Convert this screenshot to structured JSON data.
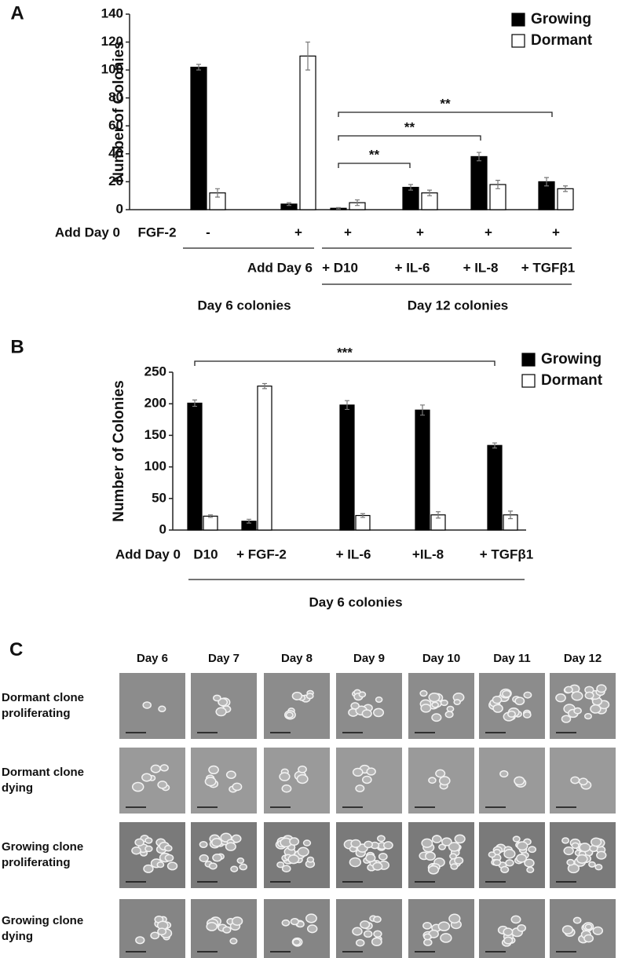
{
  "chart_data": [
    {
      "type": "bar",
      "panel_label": "A",
      "y_label": "Number of Colonies",
      "ylim": [
        0,
        140
      ],
      "yticks": [
        0,
        20,
        40,
        60,
        80,
        100,
        120,
        140
      ],
      "categories": [
        "-",
        "+",
        "+",
        "+",
        "+",
        "+"
      ],
      "categories_day6": [
        null,
        null,
        "+ D10",
        "+ IL-6",
        "+ IL-8",
        "+ TGFβ1"
      ],
      "add_day0_label": "Add Day 0",
      "factor_label": "FGF-2",
      "add_day6_label": "Add Day 6",
      "group_labels": [
        "Day 6 colonies",
        "Day 12 colonies"
      ],
      "annotations": [
        "**",
        "**",
        "**"
      ],
      "legend": "upper right",
      "series": [
        {
          "name": "Growing",
          "color": "#000000",
          "values": [
            102,
            4,
            1,
            16,
            38,
            20
          ],
          "errors": [
            2,
            1,
            0.5,
            2,
            3,
            3
          ]
        },
        {
          "name": "Dormant",
          "color": "#ffffff",
          "values": [
            12,
            110,
            5,
            12,
            18,
            15
          ],
          "errors": [
            3,
            10,
            2,
            2,
            3,
            2
          ]
        }
      ]
    },
    {
      "type": "bar",
      "panel_label": "B",
      "y_label": "Number of Colonies",
      "ylim": [
        0,
        250
      ],
      "yticks": [
        0,
        50,
        100,
        150,
        200,
        250
      ],
      "categories": [
        "D10",
        "+ FGF-2",
        "+ IL-6",
        "+IL-8",
        "+ TGFβ1"
      ],
      "add_day0_label": "Add Day 0",
      "group_labels": [
        "Day 6 colonies"
      ],
      "annotations": [
        "***"
      ],
      "legend": "upper right",
      "series": [
        {
          "name": "Growing",
          "color": "#000000",
          "values": [
            201,
            14,
            198,
            190,
            134
          ],
          "errors": [
            5,
            3,
            7,
            8,
            4
          ]
        },
        {
          "name": "Dormant",
          "color": "#ffffff",
          "values": [
            22,
            228,
            23,
            24,
            24
          ],
          "errors": [
            2,
            4,
            3,
            5,
            6
          ]
        }
      ]
    }
  ],
  "panel_c": {
    "label": "C",
    "columns": [
      "Day 6",
      "Day 7",
      "Day 8",
      "Day 9",
      "Day 10",
      "Day 11",
      "Day 12"
    ],
    "rows": [
      "Dormant clone proliferating",
      "Dormant clone dying",
      "Growing clone proliferating",
      "Growing clone dying"
    ]
  }
}
